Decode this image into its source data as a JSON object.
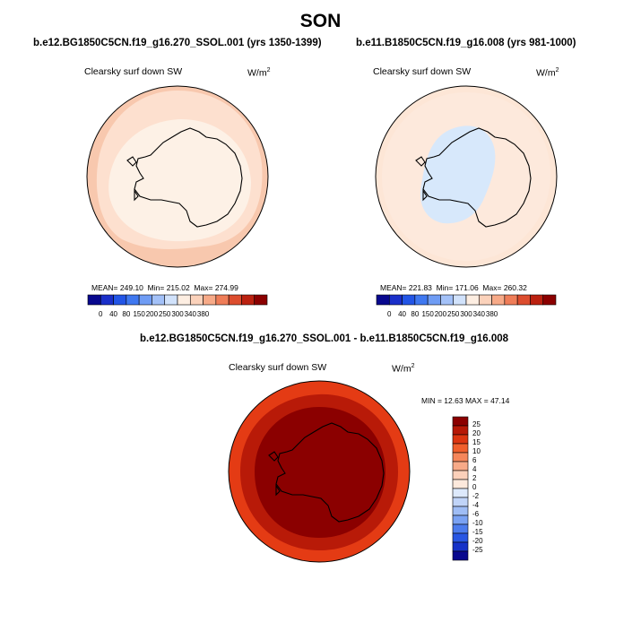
{
  "title": "SON",
  "panels": [
    {
      "case_label": "b.e12.BG1850C5CN.f19_g16.270_SSOL.001 (yrs 1350-1399)",
      "variable": "Clearsky surf down SW",
      "units_base": "W/m",
      "units_exp": "2",
      "stats": {
        "mean_label": "MEAN=",
        "mean": "249.10",
        "min_label": "Min=",
        "min": "215.02",
        "max_label": "Max=",
        "max": "274.99"
      },
      "fills": {
        "ocean": "#f8c8ae",
        "band": "#fde0cf",
        "inner": "#fdf1e6"
      }
    },
    {
      "case_label": "b.e11.B1850C5CN.f19_g16.008 (yrs 981-1000)",
      "variable": "Clearsky surf down SW",
      "units_base": "W/m",
      "units_exp": "2",
      "stats": {
        "mean_label": "MEAN=",
        "mean": "221.83",
        "min_label": "Min=",
        "min": "171.06",
        "max_label": "Max=",
        "max": "260.32"
      },
      "fills": {
        "ocean": "#fde6d6",
        "band": "#fde9dc",
        "inner": "#d7e8fb"
      }
    },
    {
      "case_label": "b.e12.BG1850C5CN.f19_g16.270_SSOL.001 - b.e11.B1850C5CN.f19_g16.008",
      "variable": "Clearsky surf down SW",
      "units_base": "W/m",
      "units_exp": "2",
      "stats": {
        "min_label": "MIN =",
        "min": "12.63",
        "max_label": "MAX =",
        "max": "47.14"
      },
      "fills": {
        "ocean": "#e43b14",
        "band": "#b81a08",
        "inner": "#8b0000"
      }
    }
  ],
  "abs_colorbar": {
    "colors": [
      "#08088e",
      "#1a2fc9",
      "#2255e6",
      "#3f78f0",
      "#6f9cf4",
      "#a3c1f8",
      "#d1e2fb",
      "#fdeee2",
      "#fbd2bb",
      "#f7aa88",
      "#ef7d58",
      "#dc4d2e",
      "#bb2110",
      "#8b0000"
    ],
    "labels": [
      "0",
      "40",
      "80",
      "150",
      "200",
      "250",
      "300",
      "340",
      "380"
    ]
  },
  "diff_colorbar": {
    "colors": [
      "#8b0000",
      "#b61806",
      "#dc3510",
      "#f05f2c",
      "#f5865a",
      "#f7aa88",
      "#fbd0ba",
      "#fde9dc",
      "#dde9fb",
      "#c0d4f8",
      "#9fbdf5",
      "#7aa2f3",
      "#4c7ced",
      "#2856e3",
      "#1632c8",
      "#08088e"
    ],
    "labels": [
      "25",
      "20",
      "15",
      "10",
      "6",
      "4",
      "2",
      "0",
      "-2",
      "-4",
      "-6",
      "-10",
      "-15",
      "-20",
      "-25"
    ]
  }
}
